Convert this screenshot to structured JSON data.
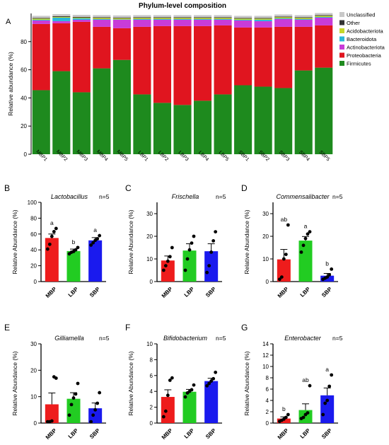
{
  "chart_data": [
    {
      "panel": "A",
      "type": "bar",
      "stacked": true,
      "title": "Phylum-level composition",
      "ylabel": "Relative abundance (%)",
      "xlabel": "",
      "ylim": [
        0,
        100
      ],
      "yticks": [
        0,
        20,
        40,
        60,
        80
      ],
      "legend": "right",
      "categories": [
        "MBP1",
        "MBP2",
        "MBP3",
        "MBP4",
        "MBP5",
        "LBP1",
        "LBP2",
        "LBP3",
        "LBP4",
        "LBP5",
        "SBP1",
        "SBP2",
        "SBP3",
        "SBP4",
        "SBP5"
      ],
      "series": [
        {
          "name": "Firmicutes",
          "color": "#1e8a1e",
          "values": [
            45.5,
            59,
            44,
            61,
            67,
            42.5,
            36.5,
            35,
            38,
            42.5,
            49,
            48,
            47,
            59.5,
            61.5
          ]
        },
        {
          "name": "Proteobacteria",
          "color": "#e0151f",
          "values": [
            47,
            34,
            50,
            29.5,
            22.5,
            48,
            54.5,
            56,
            53,
            49,
            41,
            42,
            43.5,
            31,
            30
          ]
        },
        {
          "name": "Actinobacteriota",
          "color": "#c83cd8",
          "values": [
            2.5,
            1.5,
            1.5,
            5,
            6,
            5,
            4.5,
            4.5,
            4.5,
            4,
            5,
            4.5,
            5.5,
            5,
            5.5
          ]
        },
        {
          "name": "Bacteroidota",
          "color": "#29b8d8",
          "values": [
            0.5,
            2.5,
            1,
            0.5,
            0.3,
            0.5,
            0.5,
            0.5,
            0.5,
            0.5,
            0.5,
            1,
            0.5,
            0.5,
            0.5
          ]
        },
        {
          "name": "Acidobacteriota",
          "color": "#c5d82a",
          "values": [
            0.8,
            0.5,
            0.5,
            0.8,
            0.8,
            0.8,
            0.8,
            0.8,
            0.8,
            0.8,
            0.8,
            0.8,
            0.8,
            0.8,
            0.8
          ]
        },
        {
          "name": "Other",
          "color": "#333333",
          "values": [
            0.5,
            0.5,
            0.5,
            0.5,
            0.5,
            0.5,
            0.5,
            0.5,
            0.5,
            0.5,
            0.5,
            0.5,
            0.5,
            0.5,
            0.5
          ]
        },
        {
          "name": "Unclassified",
          "color": "#c8c8c8",
          "values": [
            1.5,
            1.5,
            1.5,
            1.5,
            1.5,
            1.5,
            1.5,
            1.5,
            1.5,
            1.5,
            1.5,
            1.5,
            1.5,
            1.5,
            1.5
          ]
        }
      ]
    },
    {
      "panel": "B",
      "type": "bar",
      "title": "Lactobacillus",
      "n_label": "n=5",
      "ylabel": "Relative Abundance (%)",
      "ylim": [
        0,
        100
      ],
      "yticks": [
        0,
        20,
        40,
        60,
        80,
        100
      ],
      "categories": [
        "MBP",
        "LBP",
        "SBP"
      ],
      "colors": [
        "#ee1c1c",
        "#22cc22",
        "#1a1aee"
      ],
      "values": [
        55,
        38.5,
        52
      ],
      "errors": [
        5,
        2.5,
        3.5
      ],
      "letters": [
        "a",
        "b",
        "a"
      ],
      "points": [
        [
          41,
          47,
          57,
          63,
          67
        ],
        [
          35,
          37,
          38,
          40,
          43
        ],
        [
          46,
          49,
          52,
          54,
          58
        ]
      ]
    },
    {
      "panel": "C",
      "type": "bar",
      "title": "Frischella",
      "n_label": "n=5",
      "ylabel": "Relative Abundance (%)",
      "ylim": [
        0,
        35
      ],
      "yticks": [
        0,
        10,
        20,
        30
      ],
      "categories": [
        "MBP",
        "LBP",
        "SBP"
      ],
      "colors": [
        "#ee1c1c",
        "#22cc22",
        "#1a1aee"
      ],
      "values": [
        9.3,
        13.7,
        13.4
      ],
      "errors": [
        2,
        3,
        3.3
      ],
      "letters": [
        "",
        "",
        ""
      ],
      "points": [
        [
          5,
          7,
          9,
          11,
          15
        ],
        [
          5,
          10,
          14,
          17,
          20
        ],
        [
          4,
          7,
          13,
          18,
          22
        ]
      ]
    },
    {
      "panel": "D",
      "type": "bar",
      "title": "Commensalibacter",
      "n_label": "n=5",
      "ylabel": "Relative Abundance (%)",
      "ylim": [
        0,
        35
      ],
      "yticks": [
        0,
        10,
        20,
        30
      ],
      "categories": [
        "MBP",
        "LBP",
        "SBP"
      ],
      "colors": [
        "#ee1c1c",
        "#22cc22",
        "#1a1aee"
      ],
      "values": [
        9.8,
        18.1,
        2.6
      ],
      "errors": [
        4.4,
        1.8,
        1
      ],
      "letters": [
        "ab",
        "a",
        "b"
      ],
      "points": [
        [
          1,
          2,
          10,
          12,
          25
        ],
        [
          13,
          16,
          19,
          21,
          22
        ],
        [
          1,
          1.5,
          2,
          3,
          5.5
        ]
      ]
    },
    {
      "panel": "E",
      "type": "bar",
      "title": "Gilliamella",
      "n_label": "n=5",
      "ylabel": "Relative Abundance (%)",
      "ylim": [
        0,
        30
      ],
      "yticks": [
        0,
        10,
        20,
        30
      ],
      "categories": [
        "MBP",
        "LBP",
        "SBP"
      ],
      "colors": [
        "#ee1c1c",
        "#22cc22",
        "#1a1aee"
      ],
      "values": [
        7.1,
        9.2,
        5.6
      ],
      "errors": [
        4.3,
        2.3,
        2
      ],
      "letters": [
        "",
        "",
        ""
      ],
      "points": [
        [
          0.5,
          0.5,
          0.8,
          17.5,
          17
        ],
        [
          3,
          7,
          9.5,
          11,
          15
        ],
        [
          0.5,
          3,
          5,
          7.5,
          11.5
        ]
      ]
    },
    {
      "panel": "F",
      "type": "bar",
      "title": "Bifidobacterium",
      "n_label": "n=5",
      "ylabel": "Relative Abundance (%)",
      "ylim": [
        0,
        10
      ],
      "yticks": [
        0,
        2,
        4,
        6,
        8,
        10
      ],
      "categories": [
        "MBP",
        "LBP",
        "SBP"
      ],
      "colors": [
        "#ee1c1c",
        "#22cc22",
        "#1a1aee"
      ],
      "values": [
        3.3,
        3.95,
        5.3
      ],
      "errors": [
        0.9,
        0.3,
        0.35
      ],
      "letters": [
        "",
        "",
        ""
      ],
      "points": [
        [
          0.8,
          1.5,
          3.5,
          5.4,
          5.7
        ],
        [
          3.3,
          3.8,
          4.0,
          4.2,
          4.8
        ],
        [
          4.7,
          5.0,
          5.3,
          5.6,
          6.4
        ]
      ]
    },
    {
      "panel": "G",
      "type": "bar",
      "title": "Enterobacter",
      "n_label": "n=5",
      "ylabel": "Relative Abundance (%)",
      "ylim": [
        0,
        14
      ],
      "yticks": [
        0,
        2,
        4,
        6,
        8,
        10,
        12,
        14
      ],
      "categories": [
        "MBP",
        "LBP",
        "SBP"
      ],
      "colors": [
        "#ee1c1c",
        "#22cc22",
        "#1a1aee"
      ],
      "values": [
        0.8,
        2.3,
        4.9
      ],
      "errors": [
        0.3,
        1.1,
        1.3
      ],
      "letters": [
        "b",
        "ab",
        "a"
      ],
      "points": [
        [
          0.3,
          0.5,
          0.7,
          1.0,
          1.5
        ],
        [
          0.8,
          1.0,
          1.5,
          1.8,
          6.6
        ],
        [
          1.5,
          3.5,
          4.0,
          6.5,
          8.5
        ]
      ]
    }
  ]
}
